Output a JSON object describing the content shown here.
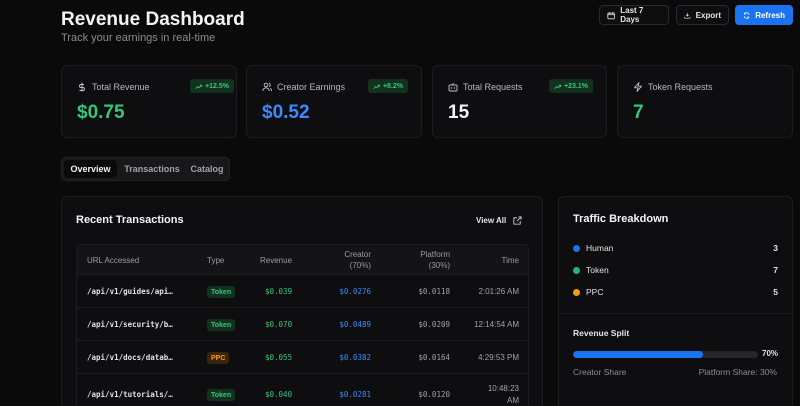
{
  "header": {
    "title": "Revenue Dashboard",
    "subtitle": "Track your earnings in real-time",
    "buttons": {
      "last7": "Last 7 Days",
      "export": "Export",
      "refresh": "Refresh"
    }
  },
  "stats": [
    {
      "label": "Total Revenue",
      "value": "$0.75",
      "badge": "+12.5%",
      "icon": "dollar-icon",
      "color": "#34c77b"
    },
    {
      "label": "Creator Earnings",
      "value": "$0.52",
      "badge": "+8.2%",
      "icon": "users-icon",
      "color": "#3b8bff"
    },
    {
      "label": "Total Requests",
      "value": "15",
      "badge": "+23.1%",
      "icon": "bot-icon",
      "color": "#f4f4f5"
    },
    {
      "label": "Token Requests",
      "value": "7",
      "icon": "zap-icon",
      "color": "#34c77b"
    }
  ],
  "tabs": [
    "Overview",
    "Transactions",
    "Catalog"
  ],
  "recent": {
    "title": "Recent Transactions",
    "view_all": "View All",
    "columns": {
      "url": "URL Accessed",
      "type": "Type",
      "revenue": "Revenue",
      "creator": [
        "Creator",
        "(70%)"
      ],
      "platform": [
        "Platform",
        "(30%)"
      ],
      "time": "Time"
    },
    "rows": [
      {
        "url": "/api/v1/guides/api…",
        "type": "Token",
        "revenue": "$0.039",
        "creator": "$0.0276",
        "platform": "$0.0118",
        "time": [
          "2:01:26 AM"
        ]
      },
      {
        "url": "/api/v1/security/b…",
        "type": "Token",
        "revenue": "$0.070",
        "creator": "$0.0489",
        "platform": "$0.0209",
        "time": [
          "12:14:54 AM"
        ]
      },
      {
        "url": "/api/v1/docs/datab…",
        "type": "PPC",
        "revenue": "$0.055",
        "creator": "$0.0382",
        "platform": "$0.0164",
        "time": [
          "4:29:53 PM"
        ]
      },
      {
        "url": "/api/v1/tutorials/…",
        "type": "Token",
        "revenue": "$0.040",
        "creator": "$0.0281",
        "platform": "$0.0120",
        "time": [
          "10:48:23",
          "AM"
        ]
      }
    ]
  },
  "traffic": {
    "title": "Traffic Breakdown",
    "items": [
      {
        "label": "Human",
        "count": "3",
        "color": "#1a73f0"
      },
      {
        "label": "Token",
        "count": "7",
        "color": "#22b573"
      },
      {
        "label": "PPC",
        "count": "5",
        "color": "#f59e0b"
      }
    ],
    "split_title": "Revenue Split",
    "split_pct": "70%",
    "split_value": 70,
    "creator_share": "Creator Share",
    "platform_share": "Platform Share: 30%"
  }
}
